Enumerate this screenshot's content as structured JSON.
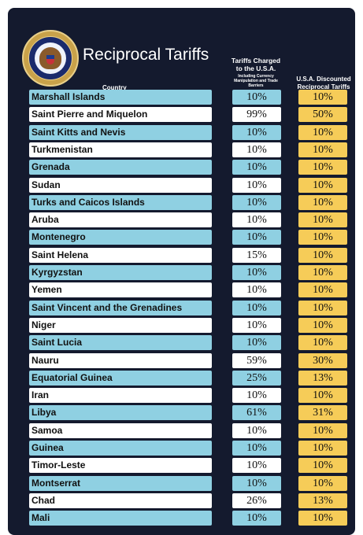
{
  "header": {
    "seal_text": "SEAL OF THE PRESIDENT OF THE UNITED STATES",
    "title": "Reciprocal Tariffs",
    "col_country": "Country",
    "col_charged": "Tariffs Charged to the U.S.A.",
    "col_charged_sub": "Including Currency Manipulation and Trade Barriers",
    "col_discounted": "U.S.A. Discounted Reciprocal Tariffs"
  },
  "rows": [
    {
      "country": "Marshall Islands",
      "charged": "10%",
      "discounted": "10%"
    },
    {
      "country": "Saint Pierre and Miquelon",
      "charged": "99%",
      "discounted": "50%"
    },
    {
      "country": "Saint Kitts and Nevis",
      "charged": "10%",
      "discounted": "10%"
    },
    {
      "country": "Turkmenistan",
      "charged": "10%",
      "discounted": "10%"
    },
    {
      "country": "Grenada",
      "charged": "10%",
      "discounted": "10%"
    },
    {
      "country": "Sudan",
      "charged": "10%",
      "discounted": "10%"
    },
    {
      "country": "Turks and Caicos Islands",
      "charged": "10%",
      "discounted": "10%"
    },
    {
      "country": "Aruba",
      "charged": "10%",
      "discounted": "10%"
    },
    {
      "country": "Montenegro",
      "charged": "10%",
      "discounted": "10%"
    },
    {
      "country": "Saint Helena",
      "charged": "15%",
      "discounted": "10%"
    },
    {
      "country": "Kyrgyzstan",
      "charged": "10%",
      "discounted": "10%"
    },
    {
      "country": "Yemen",
      "charged": "10%",
      "discounted": "10%"
    },
    {
      "country": "Saint Vincent and the Grenadines",
      "charged": "10%",
      "discounted": "10%"
    },
    {
      "country": "Niger",
      "charged": "10%",
      "discounted": "10%"
    },
    {
      "country": "Saint Lucia",
      "charged": "10%",
      "discounted": "10%"
    },
    {
      "country": "Nauru",
      "charged": "59%",
      "discounted": "30%"
    },
    {
      "country": "Equatorial Guinea",
      "charged": "25%",
      "discounted": "13%"
    },
    {
      "country": "Iran",
      "charged": "10%",
      "discounted": "10%"
    },
    {
      "country": "Libya",
      "charged": "61%",
      "discounted": "31%"
    },
    {
      "country": "Samoa",
      "charged": "10%",
      "discounted": "10%"
    },
    {
      "country": "Guinea",
      "charged": "10%",
      "discounted": "10%"
    },
    {
      "country": "Timor-Leste",
      "charged": "10%",
      "discounted": "10%"
    },
    {
      "country": "Montserrat",
      "charged": "10%",
      "discounted": "10%"
    },
    {
      "country": "Chad",
      "charged": "26%",
      "discounted": "13%"
    },
    {
      "country": "Mali",
      "charged": "10%",
      "discounted": "10%"
    }
  ],
  "colors": {
    "background": "#141a2e",
    "row_blue": "#8fd0e2",
    "row_white": "#ffffff",
    "discount_yellow": "#f6cc58"
  }
}
